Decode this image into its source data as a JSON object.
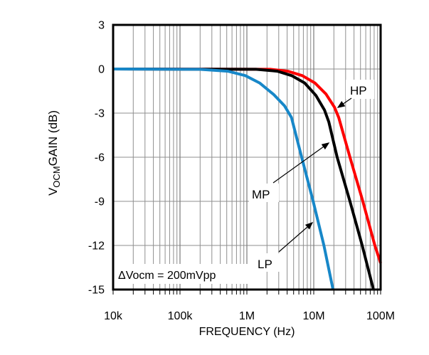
{
  "chart_data": {
    "type": "line",
    "title": "",
    "xlabel": "FREQUENCY (Hz)",
    "ylabel_prefix": "V",
    "ylabel_sub": "OCM",
    "ylabel_rest": "GAIN (dB)",
    "x_scale": "log",
    "xlim": [
      10000,
      100000000
    ],
    "ylim": [
      -15,
      3
    ],
    "grid": true,
    "legend": "inline-labels-with-arrows",
    "annotation": "ΔVocm = 200mVpp",
    "x_ticks": [
      {
        "label": "10k",
        "value": 10000
      },
      {
        "label": "100k",
        "value": 100000
      },
      {
        "label": "1M",
        "value": 1000000
      },
      {
        "label": "10M",
        "value": 10000000
      },
      {
        "label": "100M",
        "value": 100000000
      }
    ],
    "y_ticks": [
      {
        "label": "3",
        "value": 3
      },
      {
        "label": "0",
        "value": 0
      },
      {
        "label": "-3",
        "value": -3
      },
      {
        "label": "-6",
        "value": -6
      },
      {
        "label": "-9",
        "value": -9
      },
      {
        "label": "-12",
        "value": -12
      },
      {
        "label": "-15",
        "value": -15
      }
    ],
    "series": [
      {
        "name": "HP",
        "color": "#fe0000",
        "points": [
          [
            10000,
            0
          ],
          [
            2240000,
            -0.02
          ],
          [
            4120000,
            -0.15
          ],
          [
            6740000,
            -0.45
          ],
          [
            10400000,
            -0.95
          ],
          [
            15200000,
            -1.7
          ],
          [
            20400000,
            -2.6
          ],
          [
            23600000,
            -3.3
          ],
          [
            34800000,
            -6
          ],
          [
            54200000,
            -9
          ],
          [
            82000000,
            -12
          ],
          [
            100000000,
            -13.2
          ]
        ]
      },
      {
        "name": "MP",
        "color": "#000000",
        "points": [
          [
            10000,
            0
          ],
          [
            1370000,
            -0.02
          ],
          [
            2860000,
            -0.15
          ],
          [
            4680000,
            -0.45
          ],
          [
            7300000,
            -0.95
          ],
          [
            10800000,
            -1.8
          ],
          [
            14500000,
            -2.8
          ],
          [
            16800000,
            -3.6
          ],
          [
            22400000,
            -6
          ],
          [
            34800000,
            -9
          ],
          [
            53000000,
            -12
          ],
          [
            78000000,
            -15
          ]
        ]
      },
      {
        "name": "LP",
        "color": "#1787c8",
        "points": [
          [
            10000,
            0
          ],
          [
            194000,
            -0.02
          ],
          [
            520000,
            -0.15
          ],
          [
            950000,
            -0.45
          ],
          [
            1550000,
            -0.95
          ],
          [
            2540000,
            -1.75
          ],
          [
            3650000,
            -2.5
          ],
          [
            4650000,
            -3.3
          ],
          [
            6600000,
            -6
          ],
          [
            9800000,
            -9
          ],
          [
            14200000,
            -12
          ],
          [
            19400000,
            -15
          ]
        ]
      }
    ]
  }
}
